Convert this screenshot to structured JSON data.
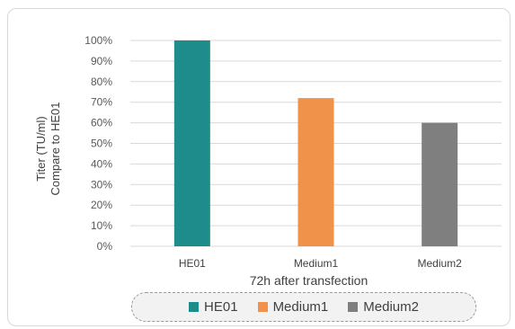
{
  "chart_data": {
    "type": "bar",
    "title": "",
    "ylabel": [
      "Titer (TU/ml)",
      "Compare to HE01"
    ],
    "xlabel": "72h after transfection",
    "categories": [
      "HE01",
      "Medium1",
      "Medium2"
    ],
    "values": [
      100,
      72,
      60
    ],
    "colors": [
      "#1e8c8a",
      "#f0924a",
      "#7f7f7f"
    ],
    "ylim": [
      0,
      100
    ],
    "yticks": [
      "0%",
      "10%",
      "20%",
      "30%",
      "40%",
      "50%",
      "60%",
      "70%",
      "80%",
      "90%",
      "100%"
    ],
    "grid": true,
    "legend_position": "bottom",
    "legend": [
      "HE01",
      "Medium1",
      "Medium2"
    ]
  }
}
